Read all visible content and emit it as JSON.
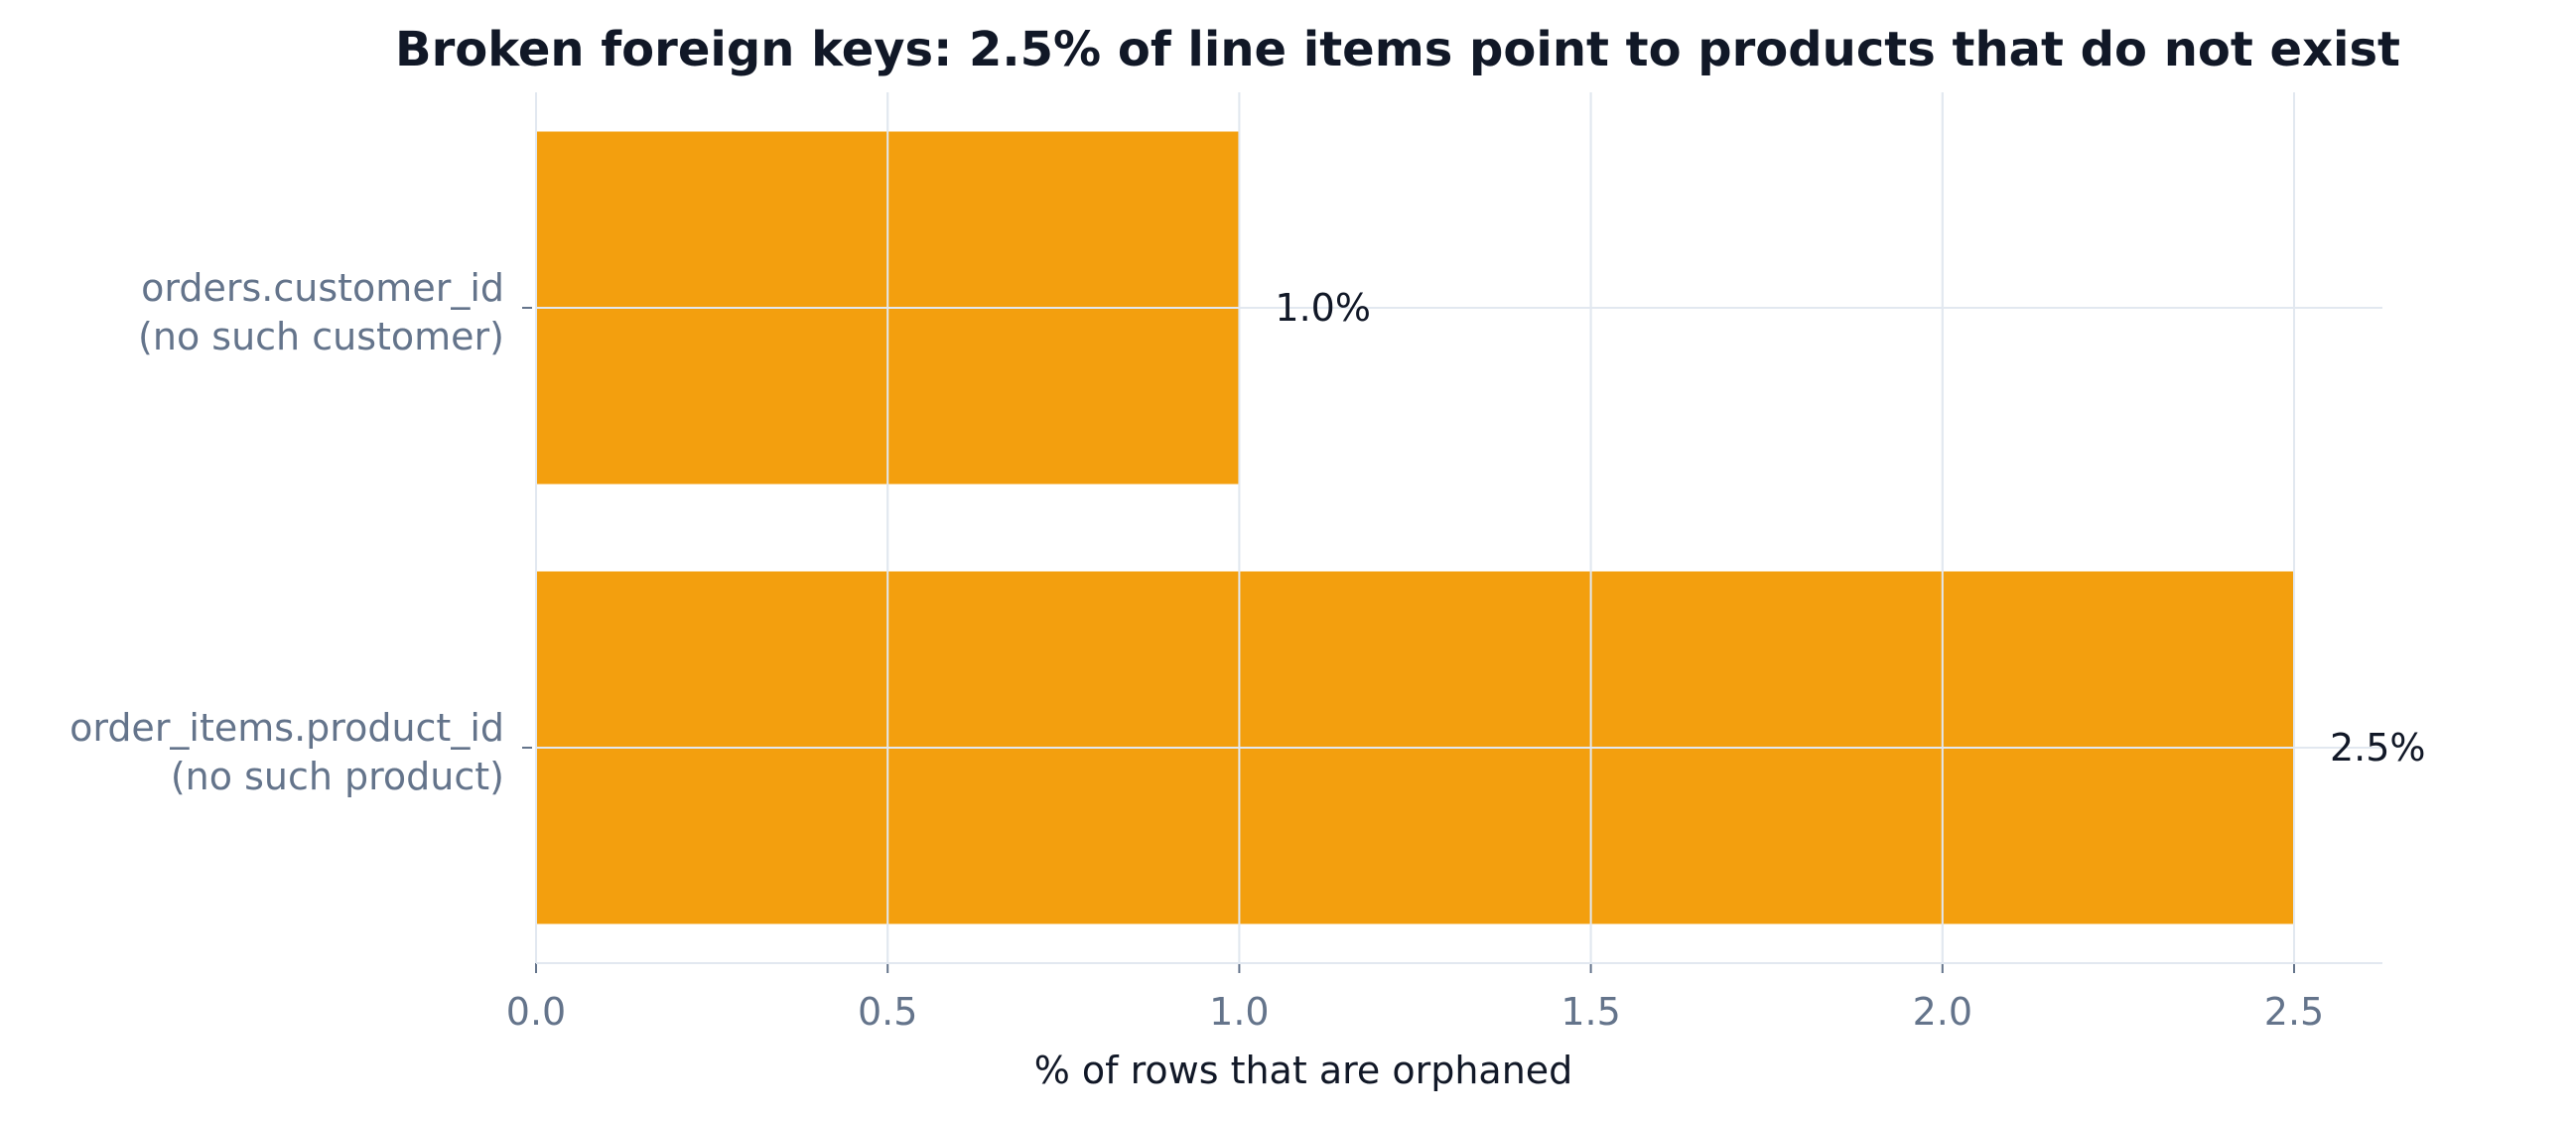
{
  "chart_data": {
    "type": "bar",
    "orientation": "horizontal",
    "title": "Broken foreign keys: 2.5% of line items point to products that do not exist",
    "xlabel": "% of rows that are orphaned",
    "ylabel": "",
    "xlim": [
      0,
      2.625
    ],
    "x_ticks": [
      0.0,
      0.5,
      1.0,
      1.5,
      2.0,
      2.5
    ],
    "x_tick_labels": [
      "0.0",
      "0.5",
      "1.0",
      "1.5",
      "2.0",
      "2.5"
    ],
    "grid": true,
    "categories": [
      {
        "lines": [
          "orders.customer_id",
          "(no such customer)"
        ]
      },
      {
        "lines": [
          "order_items.product_id",
          "(no such product)"
        ]
      }
    ],
    "values": [
      1.0,
      2.5
    ],
    "value_labels": [
      "1.0%",
      "2.5%"
    ],
    "colors": {
      "bar": "#F39F0E",
      "title": "#111827",
      "ticks": "#64748B",
      "axis_label": "#111827",
      "value_label": "#111827",
      "grid": "#E2E8F0"
    }
  }
}
